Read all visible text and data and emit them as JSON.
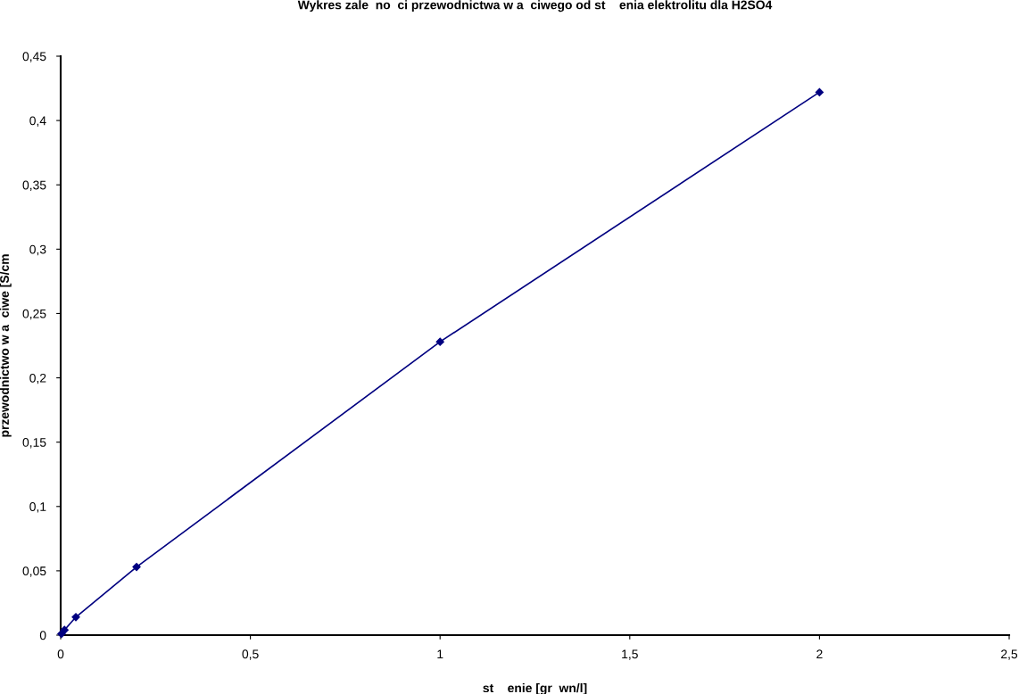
{
  "chart_data": {
    "type": "line",
    "title": "Wykres zale  no  ci przewodnictwa w a  ciwego od st    enia elektrolitu dla H2SO4",
    "xlabel": "st    enie [gr  wn/l]",
    "ylabel": "przewodnictwo w a  ciwe [S/cm",
    "x": [
      0.002,
      0.01,
      0.04,
      0.2,
      1,
      2
    ],
    "series": [
      {
        "color": "#000080",
        "values": [
          0.001,
          0.004,
          0.014,
          0.053,
          0.228,
          0.422
        ]
      }
    ],
    "marker": "diamond",
    "line_style": "solid",
    "grid": false,
    "legend": false,
    "xlim": [
      0,
      2.5
    ],
    "ylim": [
      0,
      0.45
    ],
    "xticks": [
      0,
      {
        "value": 0.5,
        "label": "0,5"
      },
      1,
      {
        "value": 1.5,
        "label": "1,5"
      },
      2,
      {
        "value": 2.5,
        "label": "2,5"
      }
    ],
    "yticks": [
      0,
      {
        "value": 0.05,
        "label": "0,05"
      },
      {
        "value": 0.1,
        "label": "0,1"
      },
      {
        "value": 0.15,
        "label": "0,15"
      },
      {
        "value": 0.2,
        "label": "0,2"
      },
      {
        "value": 0.25,
        "label": "0,25"
      },
      {
        "value": 0.3,
        "label": "0,3"
      },
      {
        "value": 0.35,
        "label": "0,35"
      },
      {
        "value": 0.4,
        "label": "0,4"
      },
      {
        "value": 0.45,
        "label": "0,45"
      }
    ]
  }
}
